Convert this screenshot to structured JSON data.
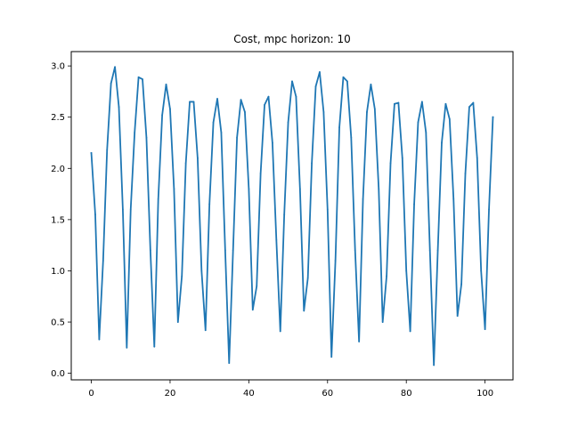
{
  "chart_data": {
    "type": "line",
    "title": "Cost, mpc horizon: 10",
    "xlabel": "",
    "ylabel": "",
    "xlim": [
      -5.1,
      107.1
    ],
    "ylim": [
      -0.064,
      3.14
    ],
    "grid": false,
    "legend": "none",
    "x_ticks": [
      0,
      20,
      40,
      60,
      80,
      100
    ],
    "x_tick_labels": [
      "0",
      "20",
      "40",
      "60",
      "80",
      "100"
    ],
    "y_ticks": [
      0.0,
      0.5,
      1.0,
      1.5,
      2.0,
      2.5,
      3.0
    ],
    "y_tick_labels": [
      "0.0",
      "0.5",
      "1.0",
      "1.5",
      "2.0",
      "2.5",
      "3.0"
    ],
    "series": [
      {
        "name": "cost",
        "color": "#1f77b4",
        "x": [
          0,
          1,
          2,
          3,
          4,
          5,
          6,
          7,
          8,
          9,
          10,
          11,
          12,
          13,
          14,
          15,
          16,
          17,
          18,
          19,
          20,
          21,
          22,
          23,
          24,
          25,
          26,
          27,
          28,
          29,
          30,
          31,
          32,
          33,
          34,
          35,
          36,
          37,
          38,
          39,
          40,
          41,
          42,
          43,
          44,
          45,
          46,
          47,
          48,
          49,
          50,
          51,
          52,
          53,
          54,
          55,
          56,
          57,
          58,
          59,
          60,
          61,
          62,
          63,
          64,
          65,
          66,
          67,
          68,
          69,
          70,
          71,
          72,
          73,
          74,
          75,
          76,
          77,
          78,
          79,
          80,
          81,
          82,
          83,
          84,
          85,
          86,
          87,
          88,
          89,
          90,
          91,
          92,
          93,
          94,
          95,
          96,
          97,
          98,
          99,
          100,
          101,
          102
        ],
        "values": [
          2.15,
          1.55,
          0.33,
          1.1,
          2.18,
          2.83,
          2.99,
          2.6,
          1.6,
          0.25,
          1.6,
          2.35,
          2.89,
          2.87,
          2.3,
          1.2,
          0.26,
          1.7,
          2.52,
          2.82,
          2.58,
          1.8,
          0.5,
          0.95,
          2.05,
          2.65,
          2.65,
          2.1,
          1.0,
          0.42,
          1.65,
          2.45,
          2.68,
          2.35,
          1.2,
          0.1,
          1.2,
          2.3,
          2.67,
          2.55,
          1.8,
          0.62,
          0.85,
          1.95,
          2.62,
          2.7,
          2.25,
          1.3,
          0.41,
          1.55,
          2.45,
          2.85,
          2.7,
          1.8,
          0.61,
          0.93,
          2.05,
          2.8,
          2.94,
          2.55,
          1.6,
          0.16,
          1.1,
          2.4,
          2.89,
          2.85,
          2.3,
          1.2,
          0.31,
          1.7,
          2.55,
          2.82,
          2.58,
          1.8,
          0.5,
          0.95,
          2.05,
          2.63,
          2.64,
          2.1,
          1.0,
          0.41,
          1.65,
          2.45,
          2.65,
          2.35,
          1.2,
          0.08,
          1.2,
          2.25,
          2.63,
          2.48,
          1.7,
          0.56,
          0.87,
          1.95,
          2.6,
          2.64,
          2.1,
          1.0,
          0.43,
          1.6,
          2.5
        ]
      }
    ]
  }
}
